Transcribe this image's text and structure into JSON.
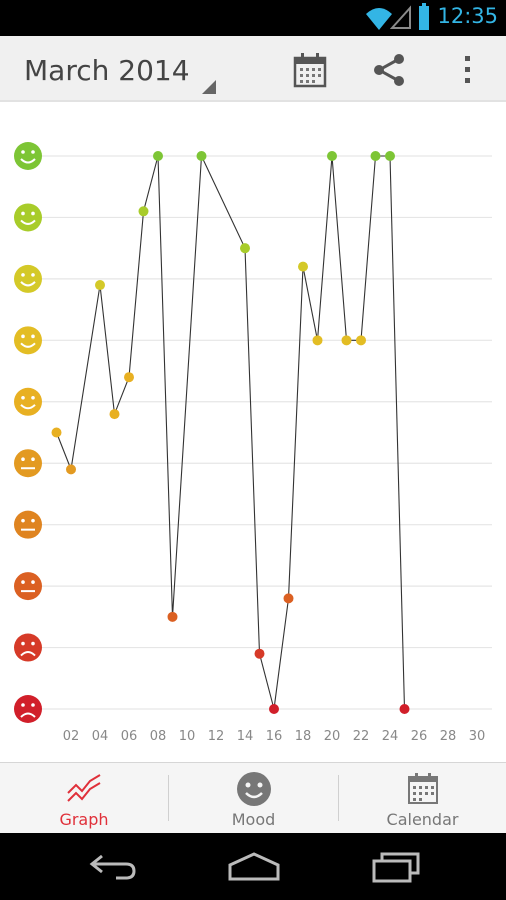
{
  "status_bar": {
    "time": "12:35",
    "wifi_icon": "wifi-icon",
    "signal_icon": "signal-icon",
    "battery_icon": "battery-icon"
  },
  "action_bar": {
    "month_label": "March 2014",
    "actions": [
      {
        "name": "calendar-icon",
        "label": ""
      },
      {
        "name": "share-icon",
        "label": ""
      },
      {
        "name": "overflow-menu-icon",
        "label": ""
      }
    ]
  },
  "chart_data": {
    "type": "line",
    "x_ticks": [
      "02",
      "04",
      "06",
      "08",
      "10",
      "12",
      "14",
      "16",
      "18",
      "20",
      "22",
      "24",
      "26",
      "28",
      "30"
    ],
    "xlim": [
      1,
      30
    ],
    "ylim": [
      1,
      10
    ],
    "mood_levels": [
      {
        "level": 10,
        "face": "happy",
        "color": "#7dc535"
      },
      {
        "level": 9,
        "face": "happy",
        "color": "#a8cc2a"
      },
      {
        "level": 8,
        "face": "happy",
        "color": "#d4c928"
      },
      {
        "level": 7,
        "face": "happy",
        "color": "#e3bd24"
      },
      {
        "level": 6,
        "face": "happy",
        "color": "#e8b022"
      },
      {
        "level": 5,
        "face": "neutral",
        "color": "#e39a21"
      },
      {
        "level": 4,
        "face": "neutral",
        "color": "#df8420"
      },
      {
        "level": 3,
        "face": "neutral",
        "color": "#db6022"
      },
      {
        "level": 2,
        "face": "sad",
        "color": "#d63a28"
      },
      {
        "level": 1,
        "face": "sad",
        "color": "#d11f2a"
      }
    ],
    "points": [
      {
        "x": 1,
        "y": 5.5
      },
      {
        "x": 2,
        "y": 4.9
      },
      {
        "x": 4,
        "y": 7.9
      },
      {
        "x": 5,
        "y": 5.8
      },
      {
        "x": 6,
        "y": 6.4
      },
      {
        "x": 7,
        "y": 9.1
      },
      {
        "x": 8,
        "y": 10
      },
      {
        "x": 9,
        "y": 2.5
      },
      {
        "x": 11,
        "y": 10
      },
      {
        "x": 14,
        "y": 8.5
      },
      {
        "x": 15,
        "y": 1.9
      },
      {
        "x": 16,
        "y": 1
      },
      {
        "x": 17,
        "y": 2.8
      },
      {
        "x": 18,
        "y": 8.2
      },
      {
        "x": 19,
        "y": 7
      },
      {
        "x": 20,
        "y": 10
      },
      {
        "x": 21,
        "y": 7
      },
      {
        "x": 22,
        "y": 7
      },
      {
        "x": 23,
        "y": 10
      },
      {
        "x": 24,
        "y": 10
      },
      {
        "x": 25,
        "y": 1
      }
    ],
    "grid": true
  },
  "tabs": [
    {
      "label": "Graph",
      "icon": "graph-icon",
      "active": true
    },
    {
      "label": "Mood",
      "icon": "mood-face-icon",
      "active": false
    },
    {
      "label": "Calendar",
      "icon": "calendar-tab-icon",
      "active": false
    }
  ],
  "nav_bar": {
    "back_icon": "back-icon",
    "home_icon": "home-icon",
    "recents_icon": "recents-icon"
  }
}
